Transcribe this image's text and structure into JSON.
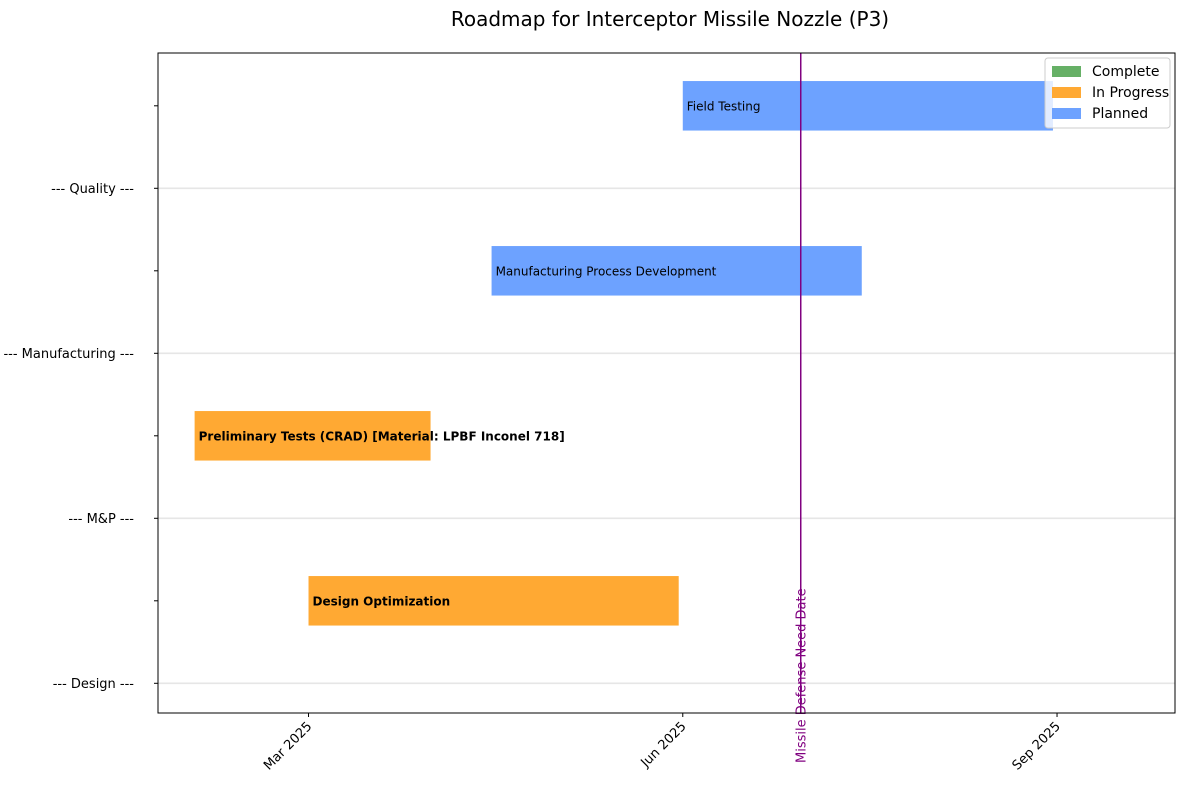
{
  "chart_data": {
    "type": "gantt",
    "title": "Roadmap for Interceptor Missile Nozzle (P3)",
    "x_axis": {
      "type": "date",
      "range": [
        "2025-01-23",
        "2025-09-30"
      ],
      "ticks": [
        {
          "date": "2025-03-01",
          "label": "Mar 2025"
        },
        {
          "date": "2025-06-01",
          "label": "Jun 2025"
        },
        {
          "date": "2025-09-01",
          "label": "Sep 2025"
        }
      ],
      "tick_label_rotation": 45
    },
    "y_axis": {
      "range": [
        -0.18,
        3.82
      ],
      "grid": true,
      "ticks": [
        {
          "value": 0,
          "label": "--- Design ---"
        },
        {
          "value": 0.5,
          "label": ""
        },
        {
          "value": 1,
          "label": "--- M&P ---"
        },
        {
          "value": 1.5,
          "label": ""
        },
        {
          "value": 2,
          "label": "--- Manufacturing ---"
        },
        {
          "value": 2.5,
          "label": ""
        },
        {
          "value": 3,
          "label": "--- Quality ---"
        },
        {
          "value": 3.5,
          "label": ""
        }
      ]
    },
    "tasks": [
      {
        "label": "Design Optimization",
        "y": 0.5,
        "start": "2025-03-01",
        "end": "2025-05-31",
        "status": "In Progress"
      },
      {
        "label": "Preliminary Tests (CRAD) [Material: LPBF Inconel 718]",
        "y": 1.5,
        "start": "2025-02-01",
        "end": "2025-03-31",
        "status": "In Progress"
      },
      {
        "label": "Manufacturing Process Development",
        "y": 2.5,
        "start": "2025-04-15",
        "end": "2025-07-15",
        "status": "Planned"
      },
      {
        "label": "Field Testing",
        "y": 3.5,
        "start": "2025-06-01",
        "end": "2025-08-31",
        "status": "Planned"
      }
    ],
    "status_colors": {
      "Complete": "#66b066",
      "In Progress": "#ffa933",
      "Planned": "#6da2ff"
    },
    "legend": {
      "position": "top-right",
      "entries": [
        "Complete",
        "In Progress",
        "Planned"
      ]
    },
    "milestones": [
      {
        "label": "Missile Defense Need Date",
        "date": "2025-06-30",
        "color": "#800080"
      }
    ]
  }
}
